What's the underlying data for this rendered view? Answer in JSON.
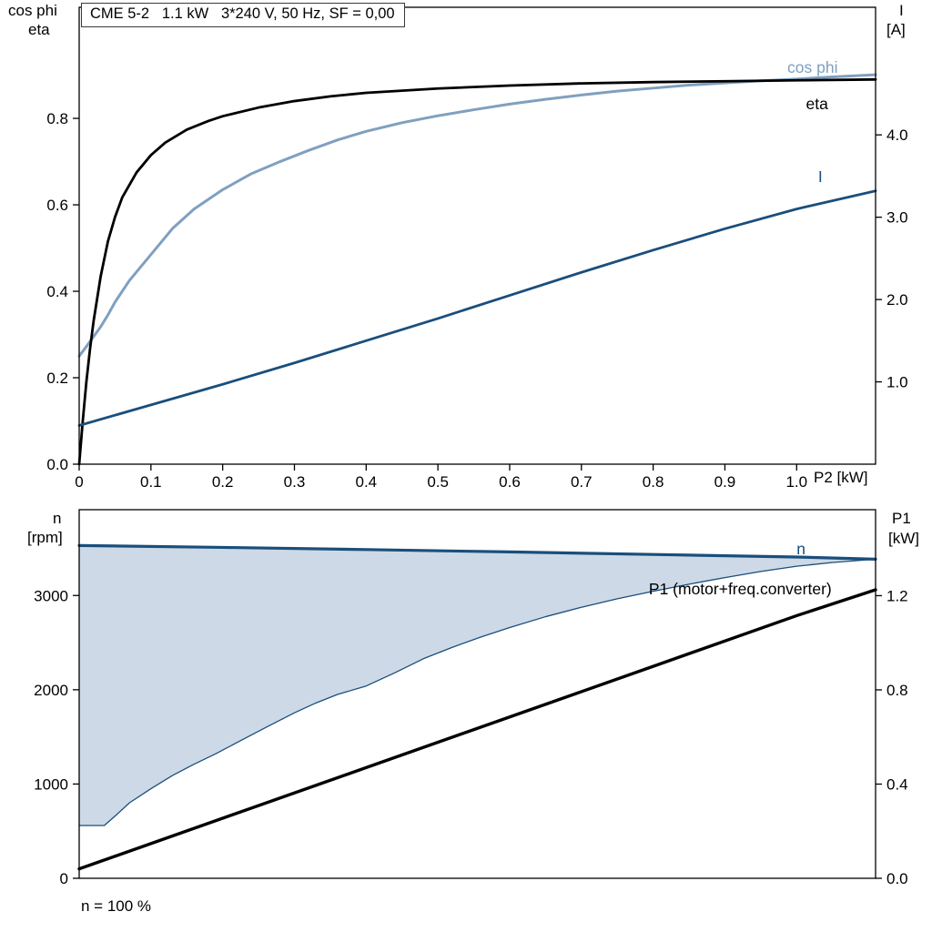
{
  "header": {
    "title": "CME 5-2   1.1 kW   3*240 V, 50 Hz, SF = 0,00"
  },
  "top_chart": {
    "left_axis_title_1": "cos phi",
    "left_axis_title_2": "eta",
    "right_axis_title_1": "I",
    "right_axis_title_2": "[A]",
    "x_axis_title": "P2 [kW]"
  },
  "bottom_chart": {
    "left_axis_title_1": "n",
    "left_axis_title_2": "[rpm]",
    "right_axis_title_1": "P1",
    "right_axis_title_2": "[kW]",
    "footnote": "n = 100 %"
  },
  "colors": {
    "curve_black": "#000000",
    "curve_dark_blue": "#1a4e7c",
    "curve_light_blue": "#7fa0bf",
    "speed_range_fill": "#cdd9e6",
    "frame": "#000000"
  },
  "chart_data": [
    {
      "id": "top",
      "type": "line",
      "title": "CME 5-2  1.1 kW  3*240 V, 50 Hz, SF = 0,00",
      "xlabel": "P2 [kW]",
      "ylabel_left": "cos phi / eta",
      "ylabel_right": "I [A]",
      "xlim": [
        0,
        1.11
      ],
      "ylim_left": [
        0,
        1.057
      ],
      "ylim_right": [
        0,
        5.55
      ],
      "x_ticks": [
        {
          "v": 0,
          "label": "0"
        },
        {
          "v": 0.1,
          "label": "0.1"
        },
        {
          "v": 0.2,
          "label": "0.2"
        },
        {
          "v": 0.3,
          "label": "0.3"
        },
        {
          "v": 0.4,
          "label": "0.4"
        },
        {
          "v": 0.5,
          "label": "0.5"
        },
        {
          "v": 0.6,
          "label": "0.6"
        },
        {
          "v": 0.7,
          "label": "0.7"
        },
        {
          "v": 0.8,
          "label": "0.8"
        },
        {
          "v": 0.9,
          "label": "0.9"
        },
        {
          "v": 1.0,
          "label": "1.0"
        }
      ],
      "y_ticks_left": [
        {
          "v": 0,
          "label": "0.0"
        },
        {
          "v": 0.2,
          "label": "0.2"
        },
        {
          "v": 0.4,
          "label": "0.4"
        },
        {
          "v": 0.6,
          "label": "0.6"
        },
        {
          "v": 0.8,
          "label": "0.8"
        }
      ],
      "y_ticks_right": [
        {
          "v": 1,
          "label": "1.0"
        },
        {
          "v": 2,
          "label": "2.0"
        },
        {
          "v": 3,
          "label": "3.0"
        },
        {
          "v": 4,
          "label": "4.0"
        }
      ],
      "series": [
        {
          "name": "cos_phi",
          "axis": "left",
          "color": "#7fa0bf",
          "width": 3,
          "points": [
            [
              0,
              0.25
            ],
            [
              0.01,
              0.272
            ],
            [
              0.02,
              0.295
            ],
            [
              0.03,
              0.318
            ],
            [
              0.04,
              0.345
            ],
            [
              0.05,
              0.375
            ],
            [
              0.07,
              0.425
            ],
            [
              0.09,
              0.465
            ],
            [
              0.11,
              0.505
            ],
            [
              0.13,
              0.545
            ],
            [
              0.16,
              0.59
            ],
            [
              0.2,
              0.635
            ],
            [
              0.24,
              0.672
            ],
            [
              0.28,
              0.7
            ],
            [
              0.32,
              0.726
            ],
            [
              0.36,
              0.75
            ],
            [
              0.4,
              0.77
            ],
            [
              0.45,
              0.79
            ],
            [
              0.5,
              0.806
            ],
            [
              0.55,
              0.82
            ],
            [
              0.6,
              0.833
            ],
            [
              0.65,
              0.844
            ],
            [
              0.7,
              0.854
            ],
            [
              0.75,
              0.863
            ],
            [
              0.8,
              0.87
            ],
            [
              0.85,
              0.877
            ],
            [
              0.9,
              0.882
            ],
            [
              0.95,
              0.887
            ],
            [
              1.0,
              0.891
            ],
            [
              1.05,
              0.896
            ],
            [
              1.11,
              0.901
            ]
          ]
        },
        {
          "name": "eta",
          "axis": "left",
          "color": "#000000",
          "width": 2.8,
          "points": [
            [
              0,
              0
            ],
            [
              0.005,
              0.1
            ],
            [
              0.01,
              0.19
            ],
            [
              0.015,
              0.265
            ],
            [
              0.02,
              0.33
            ],
            [
              0.03,
              0.435
            ],
            [
              0.04,
              0.515
            ],
            [
              0.05,
              0.572
            ],
            [
              0.06,
              0.617
            ],
            [
              0.08,
              0.675
            ],
            [
              0.1,
              0.715
            ],
            [
              0.12,
              0.744
            ],
            [
              0.15,
              0.774
            ],
            [
              0.18,
              0.794
            ],
            [
              0.2,
              0.805
            ],
            [
              0.25,
              0.825
            ],
            [
              0.3,
              0.84
            ],
            [
              0.35,
              0.851
            ],
            [
              0.4,
              0.859
            ],
            [
              0.5,
              0.869
            ],
            [
              0.6,
              0.876
            ],
            [
              0.7,
              0.881
            ],
            [
              0.8,
              0.884
            ],
            [
              0.9,
              0.886
            ],
            [
              1.0,
              0.888
            ],
            [
              1.11,
              0.89
            ]
          ]
        },
        {
          "name": "I",
          "axis": "right",
          "color": "#1a4e7c",
          "width": 2.8,
          "points": [
            [
              0,
              0.47
            ],
            [
              0.1,
              0.72
            ],
            [
              0.2,
              0.97
            ],
            [
              0.3,
              1.23
            ],
            [
              0.4,
              1.5
            ],
            [
              0.5,
              1.77
            ],
            [
              0.6,
              2.05
            ],
            [
              0.7,
              2.33
            ],
            [
              0.8,
              2.6
            ],
            [
              0.9,
              2.86
            ],
            [
              1.0,
              3.1
            ],
            [
              1.11,
              3.32
            ]
          ]
        }
      ],
      "labels": [
        {
          "text": "cos phi",
          "x": 0.987,
          "y": 0.905,
          "axis": "left",
          "color": "#7fa0bf"
        },
        {
          "text": "eta",
          "x": 1.013,
          "y": 0.821,
          "axis": "left",
          "color": "#000000"
        },
        {
          "text": "I",
          "x": 1.03,
          "y": 3.43,
          "axis": "right",
          "color": "#1a4e7c"
        }
      ]
    },
    {
      "id": "bottom",
      "type": "line",
      "title": "",
      "xlabel": "",
      "ylabel_left": "n [rpm]",
      "ylabel_right": "P1 [kW]",
      "xlim": [
        0,
        1.11
      ],
      "ylim_left": [
        0,
        3910
      ],
      "ylim_right": [
        0,
        1.565
      ],
      "x_ticks": [],
      "y_ticks_left": [
        {
          "v": 0,
          "label": "0"
        },
        {
          "v": 1000,
          "label": "1000"
        },
        {
          "v": 2000,
          "label": "2000"
        },
        {
          "v": 3000,
          "label": "3000"
        }
      ],
      "y_ticks_right": [
        {
          "v": 0,
          "label": "0.0"
        },
        {
          "v": 0.4,
          "label": "0.4"
        },
        {
          "v": 0.8,
          "label": "0.8"
        },
        {
          "v": 1.2,
          "label": "1.2"
        }
      ],
      "area": {
        "upper": "n",
        "lower": "speed_range_min",
        "fill": "#cdd9e6"
      },
      "series": [
        {
          "name": "speed_range_min",
          "axis": "left",
          "color": "#1a4e7c",
          "width": 1.3,
          "points": [
            [
              0,
              560
            ],
            [
              0.035,
              560
            ],
            [
              0.05,
              660
            ],
            [
              0.07,
              800
            ],
            [
              0.1,
              950
            ],
            [
              0.13,
              1090
            ],
            [
              0.16,
              1210
            ],
            [
              0.19,
              1320
            ],
            [
              0.22,
              1440
            ],
            [
              0.26,
              1600
            ],
            [
              0.3,
              1755
            ],
            [
              0.33,
              1860
            ],
            [
              0.36,
              1950
            ],
            [
              0.4,
              2040
            ],
            [
              0.44,
              2180
            ],
            [
              0.48,
              2330
            ],
            [
              0.52,
              2450
            ],
            [
              0.56,
              2560
            ],
            [
              0.6,
              2660
            ],
            [
              0.65,
              2775
            ],
            [
              0.7,
              2875
            ],
            [
              0.75,
              2965
            ],
            [
              0.8,
              3045
            ],
            [
              0.85,
              3120
            ],
            [
              0.9,
              3190
            ],
            [
              0.95,
              3255
            ],
            [
              1.0,
              3310
            ],
            [
              1.05,
              3350
            ],
            [
              1.11,
              3385
            ]
          ]
        },
        {
          "name": "n",
          "axis": "left",
          "color": "#1a4e7c",
          "width": 3.2,
          "points": [
            [
              0,
              3530
            ],
            [
              0.2,
              3510
            ],
            [
              0.4,
              3487
            ],
            [
              0.6,
              3462
            ],
            [
              0.8,
              3435
            ],
            [
              1.0,
              3408
            ],
            [
              1.11,
              3385
            ]
          ]
        },
        {
          "name": "P1",
          "axis": "right",
          "color": "#000000",
          "width": 3.4,
          "points": [
            [
              0,
              0.04
            ],
            [
              0.2,
              0.255
            ],
            [
              0.4,
              0.47
            ],
            [
              0.6,
              0.685
            ],
            [
              0.8,
              0.9
            ],
            [
              1.0,
              1.115
            ],
            [
              1.11,
              1.225
            ]
          ]
        }
      ],
      "labels": [
        {
          "text": "n",
          "x": 1.0,
          "y": 3435,
          "axis": "left",
          "color": "#1a4e7c"
        },
        {
          "text": "P1 (motor+freq.converter)",
          "x": 0.794,
          "y": 1.206,
          "axis": "right",
          "color": "#000000"
        }
      ]
    }
  ]
}
